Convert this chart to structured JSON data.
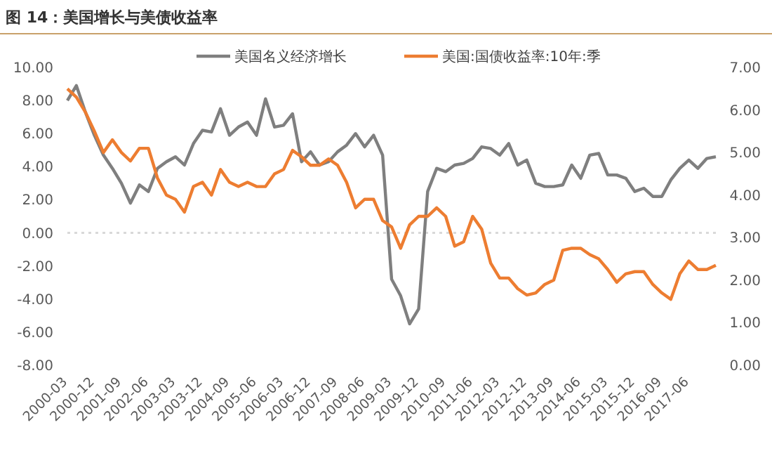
{
  "chart_data": {
    "type": "line",
    "title": "图 14：美国增长与美债收益率",
    "categories": [
      "2000-03",
      null,
      null,
      "2000-12",
      null,
      null,
      "2001-09",
      null,
      null,
      "2002-06",
      null,
      null,
      "2003-03",
      null,
      null,
      "2003-12",
      null,
      null,
      "2004-09",
      null,
      null,
      "2005-06",
      null,
      null,
      "2006-03",
      null,
      null,
      "2006-12",
      null,
      null,
      "2007-09",
      null,
      null,
      "2008-06",
      null,
      null,
      "2009-03",
      null,
      null,
      "2009-12",
      null,
      null,
      "2010-09",
      null,
      null,
      "2011-06",
      null,
      null,
      "2012-03",
      null,
      null,
      "2012-12",
      null,
      null,
      "2013-09",
      null,
      null,
      "2014-06",
      null,
      null,
      "2015-03",
      null,
      null,
      "2015-12",
      null,
      null,
      "2016-09",
      null,
      null,
      "2017-06",
      null,
      null,
      null
    ],
    "series": [
      {
        "name": "美国名义经济增长",
        "color": "#7f7f7f",
        "values": [
          8.0,
          8.9,
          7.3,
          5.9,
          4.7,
          3.9,
          3.0,
          1.8,
          2.9,
          2.5,
          3.9,
          4.3,
          4.6,
          4.1,
          5.4,
          6.2,
          6.1,
          7.5,
          5.9,
          6.4,
          6.7,
          5.9,
          8.1,
          6.4,
          6.5,
          7.2,
          4.3,
          4.9,
          4.1,
          4.3,
          4.9,
          5.3,
          6.0,
          5.2,
          5.9,
          4.7,
          -2.8,
          -3.8,
          -5.5,
          -4.6,
          2.5,
          3.9,
          3.7,
          4.1,
          4.2,
          4.5,
          5.2,
          5.1,
          4.7,
          5.4,
          4.1,
          4.4,
          3.0,
          2.8,
          2.8,
          2.9,
          4.1,
          3.3,
          4.7,
          4.8,
          3.5,
          3.5,
          3.3,
          2.5,
          2.7,
          2.2,
          2.2,
          3.2,
          3.9,
          4.4,
          3.9,
          4.5,
          4.6
        ]
      },
      {
        "name": "美国:国债收益率:10年:季",
        "color": "#ed7d31",
        "axis": "y2",
        "values": [
          6.5,
          6.3,
          5.95,
          5.5,
          5.0,
          5.3,
          5.0,
          4.8,
          5.1,
          5.1,
          4.4,
          4.0,
          3.9,
          3.6,
          4.2,
          4.3,
          4.0,
          4.6,
          4.3,
          4.2,
          4.3,
          4.2,
          4.2,
          4.5,
          4.6,
          5.05,
          4.9,
          4.7,
          4.7,
          4.85,
          4.7,
          4.3,
          3.7,
          3.9,
          3.9,
          3.4,
          3.25,
          2.75,
          3.3,
          3.5,
          3.5,
          3.7,
          3.5,
          2.8,
          2.9,
          3.5,
          3.2,
          2.4,
          2.05,
          2.05,
          1.8,
          1.65,
          1.7,
          1.9,
          2.0,
          2.7,
          2.75,
          2.75,
          2.6,
          2.5,
          2.25,
          1.95,
          2.15,
          2.2,
          2.2,
          1.9,
          1.7,
          1.55,
          2.15,
          2.45,
          2.25,
          2.25,
          2.35
        ]
      }
    ],
    "ylim": [
      -8,
      10
    ],
    "yticks": [
      {
        "value": -8,
        "label": "-8.00"
      },
      {
        "value": -6,
        "label": "-6.00"
      },
      {
        "value": -4,
        "label": "-4.00"
      },
      {
        "value": -2,
        "label": "-2.00"
      },
      {
        "value": 0,
        "label": "0.00"
      },
      {
        "value": 2,
        "label": "2.00"
      },
      {
        "value": 4,
        "label": "4.00"
      },
      {
        "value": 6,
        "label": "6.00"
      },
      {
        "value": 8,
        "label": "8.00"
      },
      {
        "value": 10,
        "label": "10.00"
      }
    ],
    "y2lim": [
      0,
      7
    ],
    "y2ticks": [
      {
        "value": 0,
        "label": "0.00"
      },
      {
        "value": 1,
        "label": "1.00"
      },
      {
        "value": 2,
        "label": "2.00"
      },
      {
        "value": 3,
        "label": "3.00"
      },
      {
        "value": 4,
        "label": "4.00"
      },
      {
        "value": 5,
        "label": "5.00"
      },
      {
        "value": 6,
        "label": "6.00"
      },
      {
        "value": 7,
        "label": "7.00"
      }
    ],
    "ref_lines": [
      {
        "axis": "y",
        "value": 0,
        "color": "#d9d9d9",
        "line_style": "dotted"
      }
    ],
    "legend": "top",
    "grid": false,
    "marker": "none",
    "line_style": "solid"
  }
}
